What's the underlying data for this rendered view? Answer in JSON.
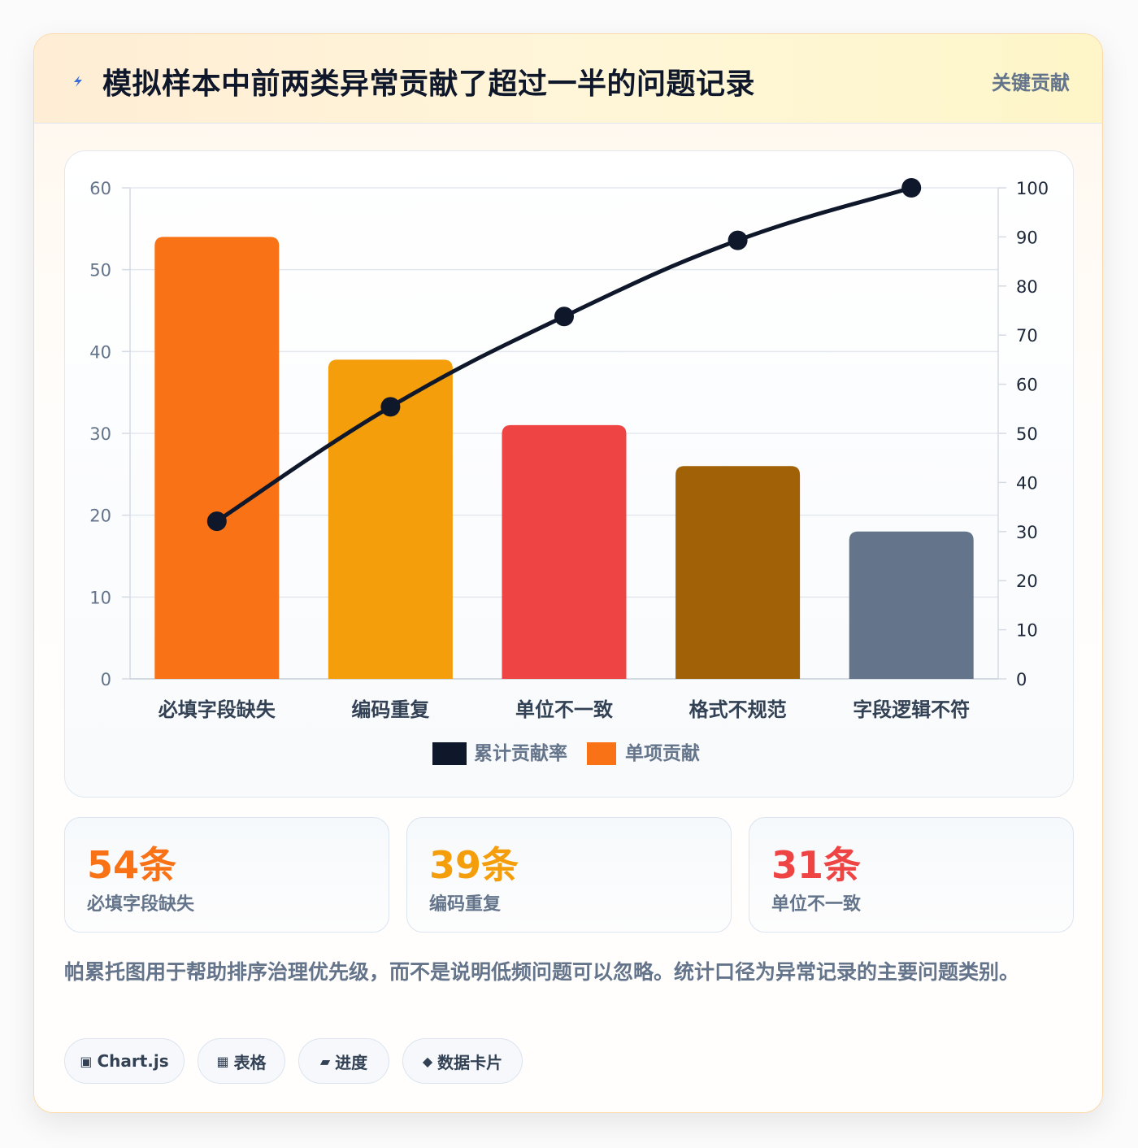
{
  "header": {
    "title": "模拟样本中前两类异常贡献了超过一半的问题记录",
    "badge": "关键贡献",
    "icon": "lightning-icon"
  },
  "chart_data": {
    "type": "bar",
    "categories": [
      "必填字段缺失",
      "编码重复",
      "单位不一致",
      "格式不规范",
      "字段逻辑不符"
    ],
    "series": [
      {
        "name": "单项贡献",
        "type": "bar",
        "axis": "left",
        "values": [
          54,
          39,
          31,
          26,
          18
        ],
        "colors": [
          "#f97316",
          "#f59e0b",
          "#ef4444",
          "#a16207",
          "#64748b"
        ]
      },
      {
        "name": "累计贡献率",
        "type": "line",
        "axis": "right",
        "values": [
          32.1,
          55.4,
          73.8,
          89.3,
          100
        ],
        "color": "#0f172a"
      }
    ],
    "y_left": {
      "min": 0,
      "max": 60,
      "ticks": [
        0,
        10,
        20,
        30,
        40,
        50,
        60
      ]
    },
    "y_right": {
      "min": 0,
      "max": 100,
      "ticks": [
        0,
        10,
        20,
        30,
        40,
        50,
        60,
        70,
        80,
        90,
        100
      ]
    },
    "legend": [
      "累计贡献率",
      "单项贡献"
    ],
    "legend_position": "bottom",
    "grid": true
  },
  "stats": [
    {
      "value": "54条",
      "label": "必填字段缺失",
      "color": "#f97316"
    },
    {
      "value": "39条",
      "label": "编码重复",
      "color": "#f59e0b"
    },
    {
      "value": "31条",
      "label": "单位不一致",
      "color": "#ef4444"
    }
  ],
  "note": "帕累托图用于帮助排序治理优先级，而不是说明低频问题可以忽略。统计口径为异常记录的主要问题类别。",
  "tags": [
    {
      "icon": "▣",
      "label": "Chart.js"
    },
    {
      "icon": "▦",
      "label": "表格"
    },
    {
      "icon": "▰",
      "label": "进度"
    },
    {
      "icon": "◆",
      "label": "数据卡片"
    }
  ]
}
